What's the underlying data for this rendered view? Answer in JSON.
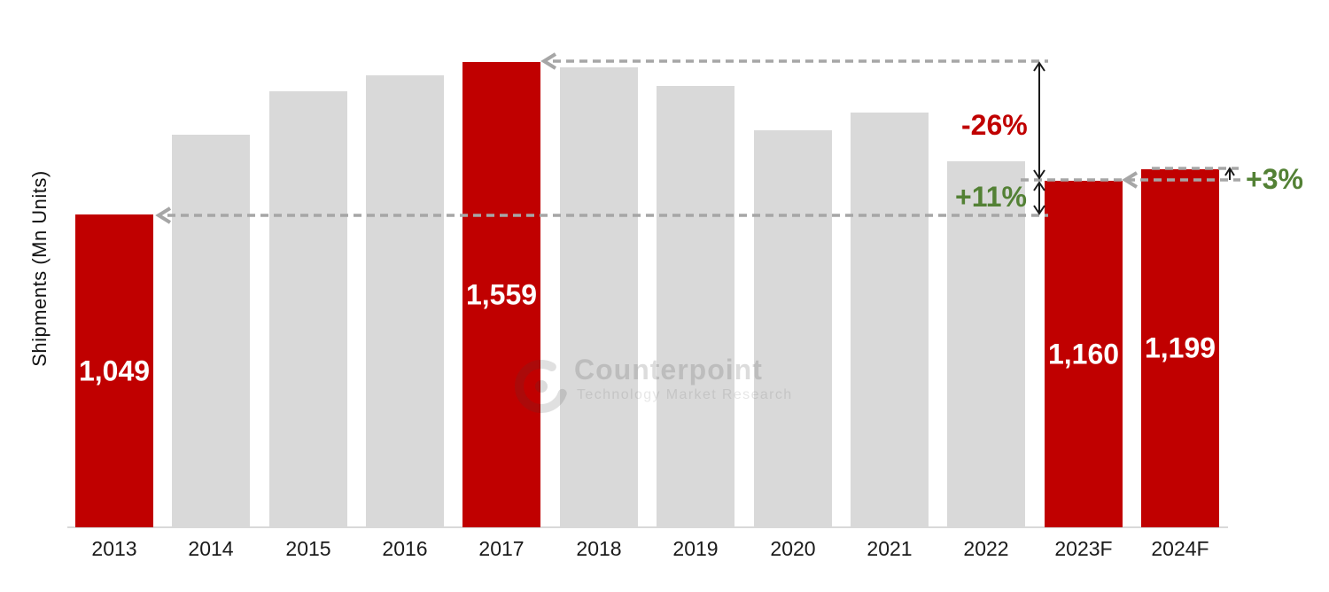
{
  "chart_data": {
    "type": "bar",
    "title": "",
    "ylabel": "Shipments (Mn Units)",
    "categories": [
      "2013",
      "2014",
      "2015",
      "2016",
      "2017",
      "2018",
      "2019",
      "2020",
      "2021",
      "2022",
      "2023F",
      "2024F"
    ],
    "values": [
      1049,
      1315,
      1460,
      1515,
      1559,
      1540,
      1480,
      1330,
      1390,
      1225,
      1160,
      1199
    ],
    "value_labels": [
      "1,049",
      "",
      "",
      "",
      "1,559",
      "",
      "",
      "",
      "",
      "",
      "1,160",
      "1,199"
    ],
    "highlighted": [
      true,
      false,
      false,
      false,
      true,
      false,
      false,
      false,
      false,
      false,
      true,
      true
    ],
    "colors": {
      "highlight_bar": "#c00000",
      "default_bar": "#d9d9d9",
      "dashed_line": "#a6a6a6",
      "decline_text": "#c00000",
      "growth_text": "#538135"
    },
    "legend": "none",
    "grid": "off",
    "annotations": {
      "decline": {
        "text": "-26%"
      },
      "recovery": {
        "text": "+11%"
      },
      "growth": {
        "text": "+3%"
      }
    }
  },
  "watermark": {
    "brand": "Counterpoint",
    "tagline": "Technology Market Research"
  }
}
